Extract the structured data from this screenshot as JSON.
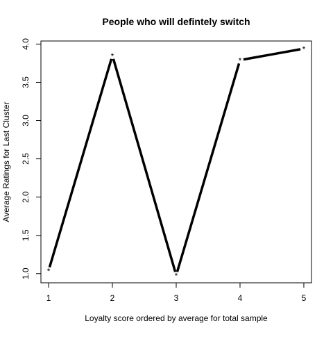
{
  "chart_data": {
    "type": "line",
    "title": "People who will defintely switch",
    "xlabel": "Loyalty score ordered by average for total sample",
    "ylabel": "Average Ratings for Last Cluster",
    "xlim": [
      0.88,
      5.12
    ],
    "ylim": [
      0.88,
      4.04
    ],
    "x_ticks": [
      1,
      2,
      3,
      4,
      5
    ],
    "y_ticks": [
      1.0,
      1.5,
      2.0,
      2.5,
      3.0,
      3.5,
      4.0
    ],
    "y_tick_labels": [
      "1.0",
      "1.5",
      "2.0",
      "2.5",
      "3.0",
      "3.5",
      "4.0"
    ],
    "x": [
      1,
      2,
      3,
      4,
      5
    ],
    "y": [
      1.04,
      3.85,
      0.98,
      3.79,
      3.94
    ],
    "marker": "*",
    "grid": false,
    "legend": "none",
    "line_color": "#000000"
  }
}
